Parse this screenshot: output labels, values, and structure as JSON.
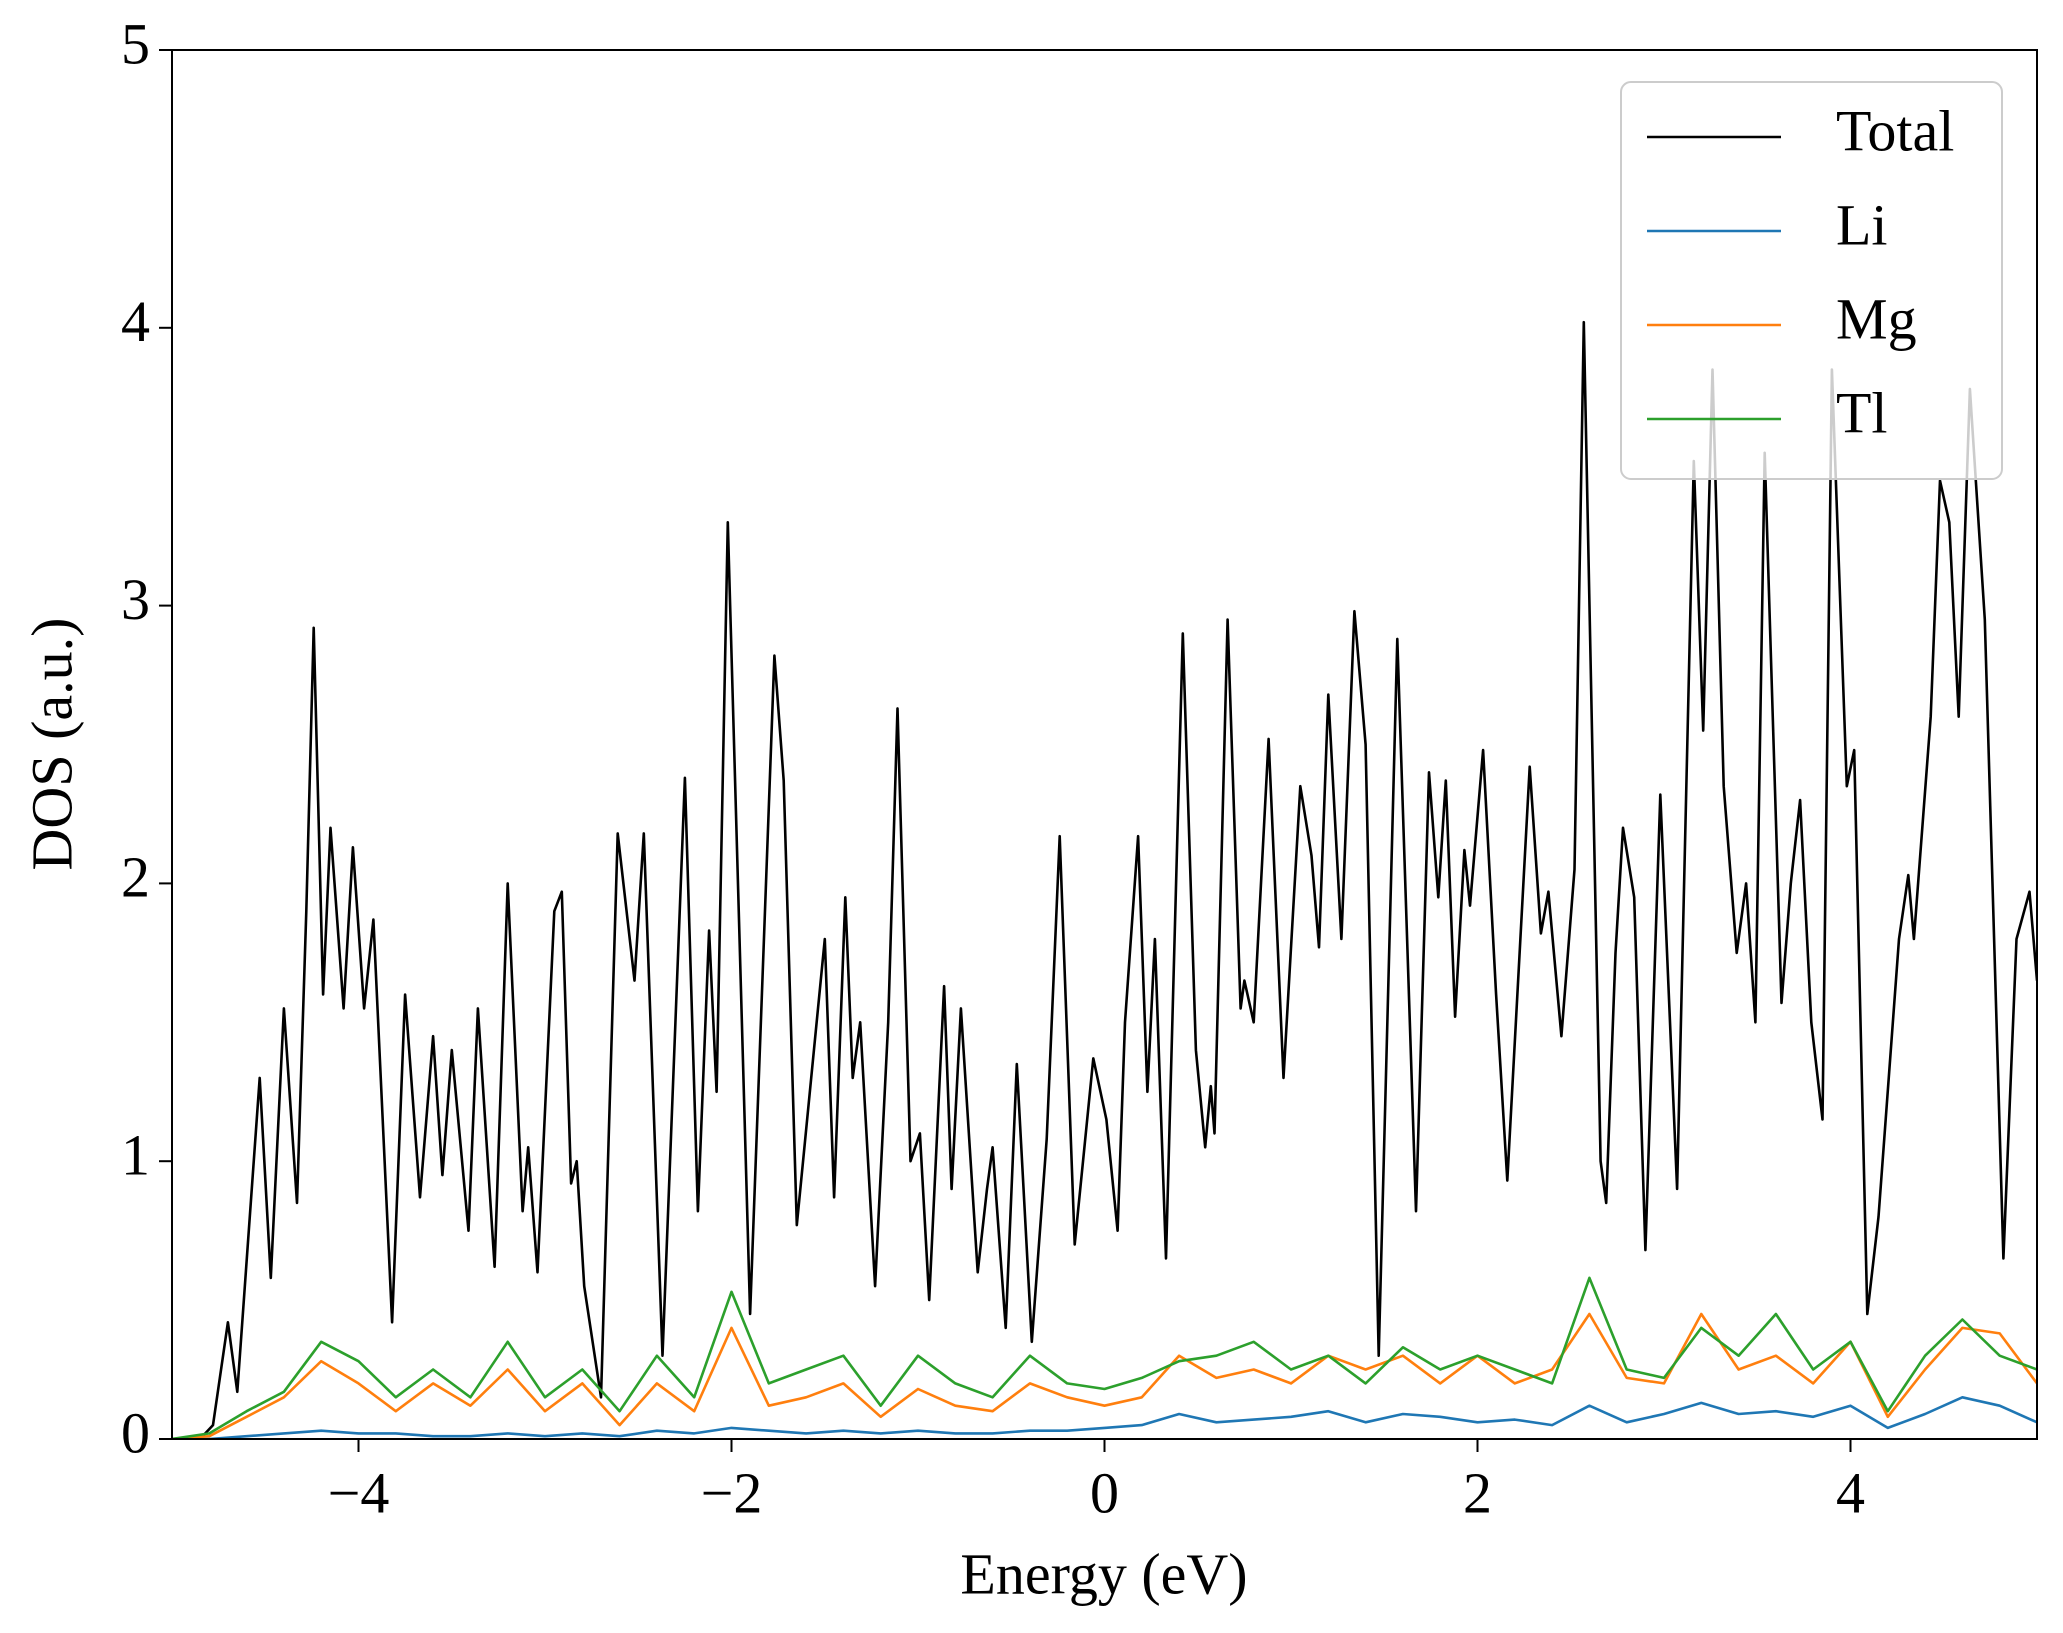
{
  "chart_data": {
    "type": "line",
    "xlabel": "Energy (eV)",
    "ylabel": "DOS (a.u.)",
    "xlim": [
      -5,
      5
    ],
    "ylim": [
      0,
      5
    ],
    "xticks": [
      {
        "value": -4,
        "label": "−4"
      },
      {
        "value": -2,
        "label": "−2"
      },
      0,
      2,
      4
    ],
    "yticks": [
      0,
      1,
      2,
      3,
      4,
      5
    ],
    "legend": "upper right",
    "series": [
      {
        "name": "Total",
        "color": "#000000",
        "x": [
          -5,
          -4.85,
          -4.78,
          -4.7,
          -4.65,
          -4.53,
          -4.47,
          -4.4,
          -4.33,
          -4.28,
          -4.24,
          -4.19,
          -4.15,
          -4.08,
          -4.03,
          -3.97,
          -3.92,
          -3.82,
          -3.75,
          -3.67,
          -3.6,
          -3.55,
          -3.5,
          -3.41,
          -3.36,
          -3.27,
          -3.2,
          -3.12,
          -3.09,
          -3.04,
          -2.95,
          -2.91,
          -2.86,
          -2.83,
          -2.79,
          -2.7,
          -2.61,
          -2.52,
          -2.47,
          -2.37,
          -2.25,
          -2.18,
          -2.12,
          -2.08,
          -2.02,
          -1.9,
          -1.77,
          -1.72,
          -1.65,
          -1.5,
          -1.45,
          -1.39,
          -1.35,
          -1.31,
          -1.23,
          -1.16,
          -1.11,
          -1.04,
          -0.99,
          -0.94,
          -0.86,
          -0.82,
          -0.77,
          -0.68,
          -0.63,
          -0.6,
          -0.53,
          -0.47,
          -0.39,
          -0.31,
          -0.24,
          -0.16,
          -0.06,
          0.01,
          0.07,
          0.11,
          0.18,
          0.23,
          0.27,
          0.33,
          0.42,
          0.49,
          0.54,
          0.57,
          0.59,
          0.66,
          0.73,
          0.75,
          0.8,
          0.88,
          0.96,
          1.05,
          1.11,
          1.15,
          1.2,
          1.27,
          1.34,
          1.4,
          1.47,
          1.57,
          1.67,
          1.74,
          1.79,
          1.83,
          1.88,
          1.93,
          1.96,
          2.03,
          2.1,
          2.16,
          2.28,
          2.34,
          2.38,
          2.45,
          2.52,
          2.57,
          2.66,
          2.69,
          2.74,
          2.78,
          2.84,
          2.9,
          2.98,
          3.07,
          3.16,
          3.21,
          3.26,
          3.32,
          3.39,
          3.44,
          3.49,
          3.54,
          3.63,
          3.68,
          3.73,
          3.79,
          3.85,
          3.9,
          3.98,
          4.02,
          4.09,
          4.15,
          4.26,
          4.31,
          4.34,
          4.43,
          4.48,
          4.53,
          4.58,
          4.64,
          4.72,
          4.82,
          4.89,
          4.96,
          5
        ],
        "values": [
          0,
          0,
          0.05,
          0.42,
          0.17,
          1.3,
          0.58,
          1.55,
          0.85,
          1.9,
          2.92,
          1.6,
          2.2,
          1.55,
          2.13,
          1.55,
          1.87,
          0.42,
          1.6,
          0.87,
          1.45,
          0.95,
          1.4,
          0.75,
          1.55,
          0.62,
          2.0,
          0.82,
          1.05,
          0.6,
          1.9,
          1.97,
          0.92,
          1.0,
          0.55,
          0.15,
          2.18,
          1.65,
          2.18,
          0.3,
          2.38,
          0.82,
          1.83,
          1.25,
          3.3,
          0.45,
          2.82,
          2.37,
          0.77,
          1.8,
          0.87,
          1.95,
          1.3,
          1.5,
          0.55,
          1.5,
          2.63,
          1.0,
          1.1,
          0.5,
          1.63,
          0.9,
          1.55,
          0.6,
          0.9,
          1.05,
          0.4,
          1.35,
          0.35,
          1.08,
          2.17,
          0.7,
          1.37,
          1.15,
          0.75,
          1.5,
          2.17,
          1.25,
          1.8,
          0.65,
          2.9,
          1.4,
          1.05,
          1.27,
          1.1,
          2.95,
          1.55,
          1.65,
          1.5,
          2.52,
          1.3,
          2.35,
          2.1,
          1.77,
          2.68,
          1.8,
          2.98,
          2.5,
          0.3,
          2.88,
          0.82,
          2.4,
          1.95,
          2.37,
          1.52,
          2.12,
          1.92,
          2.48,
          1.6,
          0.93,
          2.42,
          1.82,
          1.97,
          1.45,
          2.05,
          4.02,
          1.0,
          0.85,
          1.75,
          2.2,
          1.95,
          0.68,
          2.32,
          0.9,
          3.52,
          2.55,
          3.85,
          2.35,
          1.75,
          2.0,
          1.5,
          3.55,
          1.57,
          2.0,
          2.3,
          1.5,
          1.15,
          3.85,
          2.35,
          2.48,
          0.45,
          0.8,
          1.8,
          2.03,
          1.8,
          2.6,
          3.45,
          3.3,
          2.6,
          3.78,
          2.95,
          0.65,
          1.8,
          1.97,
          1.65
        ]
      },
      {
        "name": "Li",
        "color": "#1f77b4",
        "x": [
          -5,
          -4.8,
          -4.6,
          -4.4,
          -4.2,
          -4,
          -3.8,
          -3.6,
          -3.4,
          -3.2,
          -3,
          -2.8,
          -2.6,
          -2.4,
          -2.2,
          -2,
          -1.8,
          -1.6,
          -1.4,
          -1.2,
          -1,
          -0.8,
          -0.6,
          -0.4,
          -0.2,
          0,
          0.2,
          0.4,
          0.6,
          0.8,
          1,
          1.2,
          1.4,
          1.6,
          1.8,
          2,
          2.2,
          2.4,
          2.6,
          2.8,
          3,
          3.2,
          3.4,
          3.6,
          3.8,
          4,
          4.2,
          4.4,
          4.6,
          4.8,
          5
        ],
        "values": [
          0,
          0,
          0.01,
          0.02,
          0.03,
          0.02,
          0.02,
          0.01,
          0.01,
          0.02,
          0.01,
          0.02,
          0.01,
          0.03,
          0.02,
          0.04,
          0.03,
          0.02,
          0.03,
          0.02,
          0.03,
          0.02,
          0.02,
          0.03,
          0.03,
          0.04,
          0.05,
          0.09,
          0.06,
          0.07,
          0.08,
          0.1,
          0.06,
          0.09,
          0.08,
          0.06,
          0.07,
          0.05,
          0.12,
          0.06,
          0.09,
          0.13,
          0.09,
          0.1,
          0.08,
          0.12,
          0.04,
          0.09,
          0.15,
          0.12,
          0.06
        ]
      },
      {
        "name": "Mg",
        "color": "#ff7f0e",
        "x": [
          -5,
          -4.8,
          -4.6,
          -4.4,
          -4.2,
          -4,
          -3.8,
          -3.6,
          -3.4,
          -3.2,
          -3,
          -2.8,
          -2.6,
          -2.4,
          -2.2,
          -2,
          -1.8,
          -1.6,
          -1.4,
          -1.2,
          -1,
          -0.8,
          -0.6,
          -0.4,
          -0.2,
          0,
          0.2,
          0.4,
          0.6,
          0.8,
          1,
          1.2,
          1.4,
          1.6,
          1.8,
          2,
          2.2,
          2.4,
          2.6,
          2.8,
          3,
          3.2,
          3.4,
          3.6,
          3.8,
          4,
          4.2,
          4.4,
          4.6,
          4.8,
          5
        ],
        "values": [
          0,
          0.01,
          0.08,
          0.15,
          0.28,
          0.2,
          0.1,
          0.2,
          0.12,
          0.25,
          0.1,
          0.2,
          0.05,
          0.2,
          0.1,
          0.4,
          0.12,
          0.15,
          0.2,
          0.08,
          0.18,
          0.12,
          0.1,
          0.2,
          0.15,
          0.12,
          0.15,
          0.3,
          0.22,
          0.25,
          0.2,
          0.3,
          0.25,
          0.3,
          0.2,
          0.3,
          0.2,
          0.25,
          0.45,
          0.22,
          0.2,
          0.45,
          0.25,
          0.3,
          0.2,
          0.35,
          0.08,
          0.25,
          0.4,
          0.38,
          0.2
        ]
      },
      {
        "name": "Tl",
        "color": "#2ca02c",
        "x": [
          -5,
          -4.8,
          -4.6,
          -4.4,
          -4.2,
          -4,
          -3.8,
          -3.6,
          -3.4,
          -3.2,
          -3,
          -2.8,
          -2.6,
          -2.4,
          -2.2,
          -2,
          -1.8,
          -1.6,
          -1.4,
          -1.2,
          -1,
          -0.8,
          -0.6,
          -0.4,
          -0.2,
          0,
          0.2,
          0.4,
          0.6,
          0.8,
          1,
          1.2,
          1.4,
          1.6,
          1.8,
          2,
          2.2,
          2.4,
          2.6,
          2.8,
          3,
          3.2,
          3.4,
          3.6,
          3.8,
          4,
          4.2,
          4.4,
          4.6,
          4.8,
          5
        ],
        "values": [
          0,
          0.02,
          0.1,
          0.17,
          0.35,
          0.28,
          0.15,
          0.25,
          0.15,
          0.35,
          0.15,
          0.25,
          0.1,
          0.3,
          0.15,
          0.53,
          0.2,
          0.25,
          0.3,
          0.12,
          0.3,
          0.2,
          0.15,
          0.3,
          0.2,
          0.18,
          0.22,
          0.28,
          0.3,
          0.35,
          0.25,
          0.3,
          0.2,
          0.33,
          0.25,
          0.3,
          0.25,
          0.2,
          0.58,
          0.25,
          0.22,
          0.4,
          0.3,
          0.45,
          0.25,
          0.35,
          0.1,
          0.3,
          0.43,
          0.3,
          0.25
        ]
      }
    ]
  }
}
